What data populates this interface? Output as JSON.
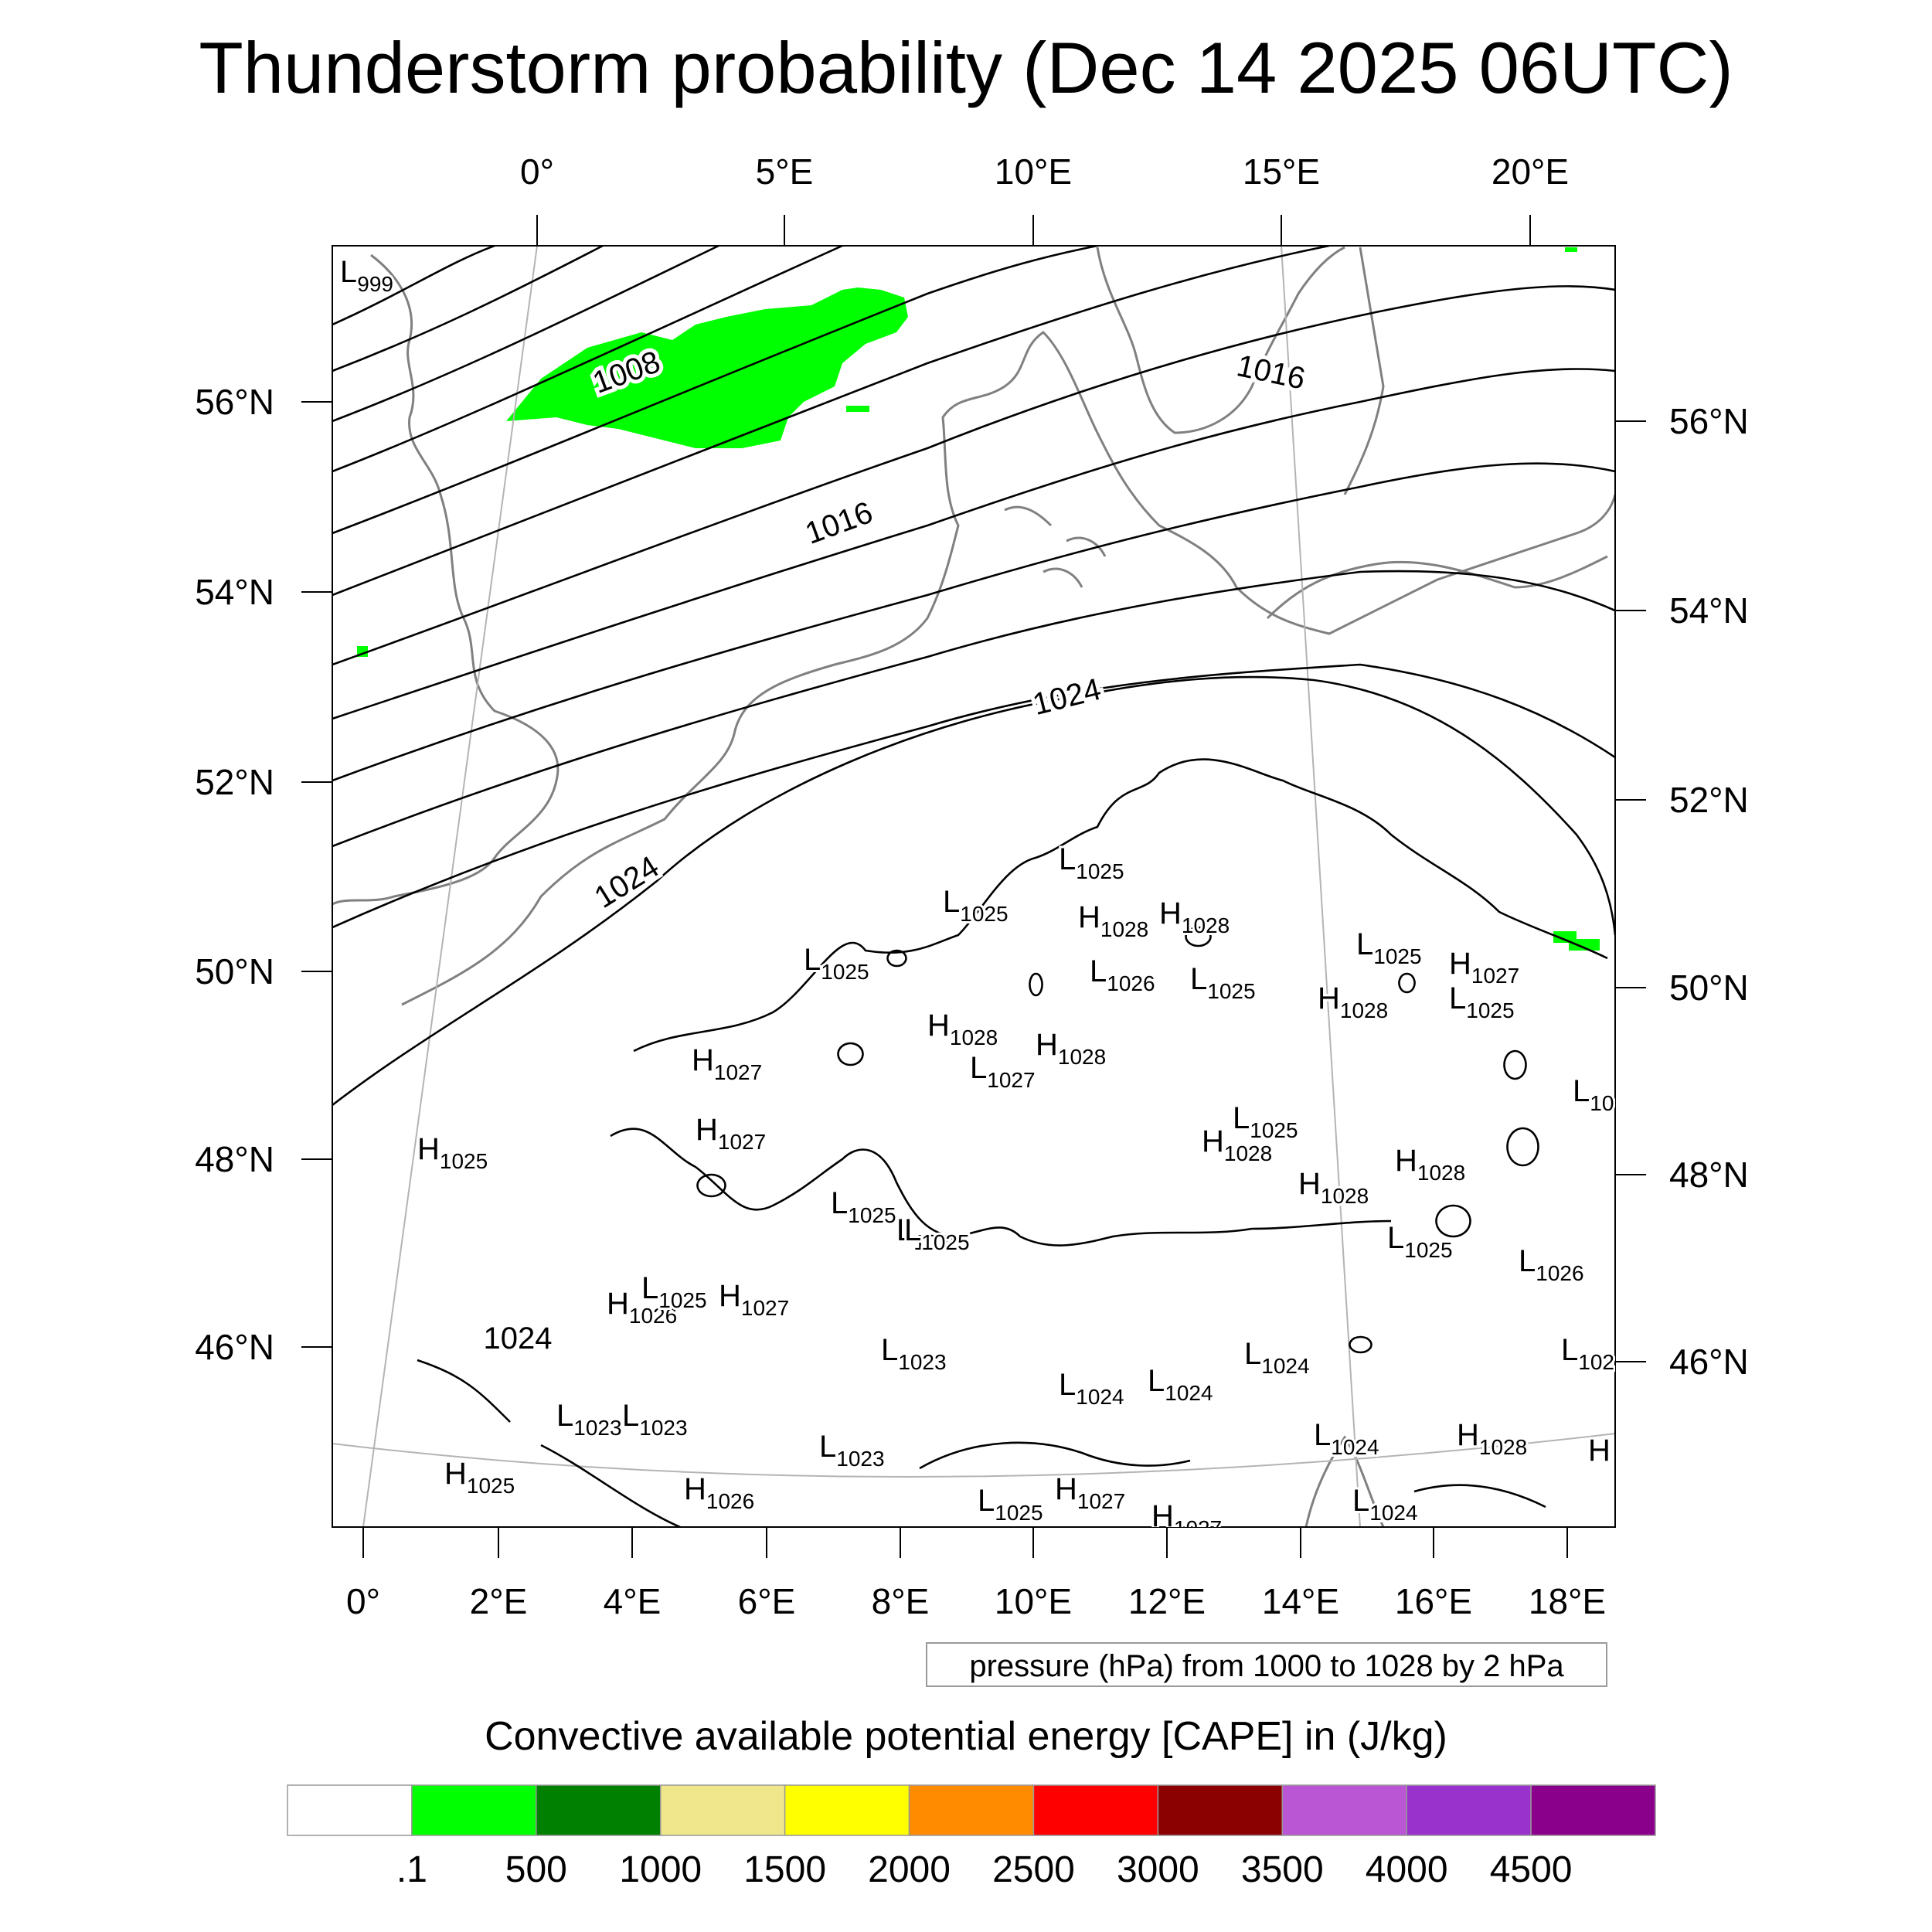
{
  "title": "Thunderstorm probability (Dec 14 2025 06UTC)",
  "contour_info": "pressure (hPa) from 1000 to 1028 by 2 hPa",
  "colorbar": {
    "title": "Convective available potential energy [CAPE] in (J/kg)",
    "colors": [
      "#ffffff",
      "#00ff00",
      "#008000",
      "#f0e68c",
      "#ffff00",
      "#ff8c00",
      "#ff0000",
      "#8b0000",
      "#ba55d3",
      "#9932cc",
      "#8b008b"
    ],
    "labels": [
      ".1",
      "500",
      "1000",
      "1500",
      "2000",
      "2500",
      "3000",
      "3500",
      "4000",
      "4500"
    ]
  },
  "axes": {
    "top_lon": [
      "0°",
      "5°E",
      "10°E",
      "15°E",
      "20°E"
    ],
    "bottom_lon": [
      "0°",
      "2°E",
      "4°E",
      "6°E",
      "8°E",
      "10°E",
      "12°E",
      "14°E",
      "16°E",
      "18°E"
    ],
    "left_lat": [
      "56°N",
      "54°N",
      "52°N",
      "50°N",
      "48°N",
      "46°N"
    ],
    "right_lat": [
      "56°N",
      "54°N",
      "52°N",
      "50°N",
      "48°N",
      "46°N"
    ]
  },
  "contour_labels": [
    "1008",
    "1016",
    "1016",
    "1024",
    "1024",
    "1024"
  ],
  "pressure_centers": [
    {
      "t": "L",
      "v": "999"
    },
    {
      "t": "L",
      "v": "1025"
    },
    {
      "t": "L",
      "v": "1025"
    },
    {
      "t": "H",
      "v": "1028"
    },
    {
      "t": "H",
      "v": "1028"
    },
    {
      "t": "L",
      "v": "1025"
    },
    {
      "t": "L",
      "v": "1026"
    },
    {
      "t": "L",
      "v": "1025"
    },
    {
      "t": "L",
      "v": "1025"
    },
    {
      "t": "H",
      "v": "1027"
    },
    {
      "t": "H",
      "v": "1028"
    },
    {
      "t": "L",
      "v": "1025"
    },
    {
      "t": "H",
      "v": "1028"
    },
    {
      "t": "H",
      "v": "1028"
    },
    {
      "t": "L",
      "v": "1027"
    },
    {
      "t": "H",
      "v": "1027"
    },
    {
      "t": "H",
      "v": "1027"
    },
    {
      "t": "H",
      "v": "1025"
    },
    {
      "t": "L",
      "v": "1025"
    },
    {
      "t": "H",
      "v": "1028"
    },
    {
      "t": "H",
      "v": "1028"
    },
    {
      "t": "H",
      "v": "1028"
    },
    {
      "t": "L",
      "v": "1025"
    },
    {
      "t": "L",
      "v": "1025"
    },
    {
      "t": "L",
      "v": "1025"
    },
    {
      "t": "L",
      "v": "1026"
    },
    {
      "t": "H",
      "v": "1026"
    },
    {
      "t": "L",
      "v": "1025"
    },
    {
      "t": "H",
      "v": "1027"
    },
    {
      "t": "L",
      "v": "1023"
    },
    {
      "t": "L",
      "v": "1024"
    },
    {
      "t": "L",
      "v": "1024"
    },
    {
      "t": "L",
      "v": "1024"
    },
    {
      "t": "L",
      "v": "1023"
    },
    {
      "t": "L",
      "v": "1023"
    },
    {
      "t": "L",
      "v": "1024"
    },
    {
      "t": "H",
      "v": "1028"
    },
    {
      "t": "L",
      "v": "1023"
    },
    {
      "t": "H",
      "v": "1025"
    },
    {
      "t": "H",
      "v": "1026"
    },
    {
      "t": "L",
      "v": "1025"
    },
    {
      "t": "H",
      "v": "1027"
    },
    {
      "t": "H",
      "v": "1027"
    },
    {
      "t": "L",
      "v": "1024"
    },
    {
      "t": "L",
      "v": "10"
    },
    {
      "t": "L",
      "v": "102"
    },
    {
      "t": "H",
      "v": ""
    },
    {
      "t": "L",
      "v": "1025"
    }
  ]
}
